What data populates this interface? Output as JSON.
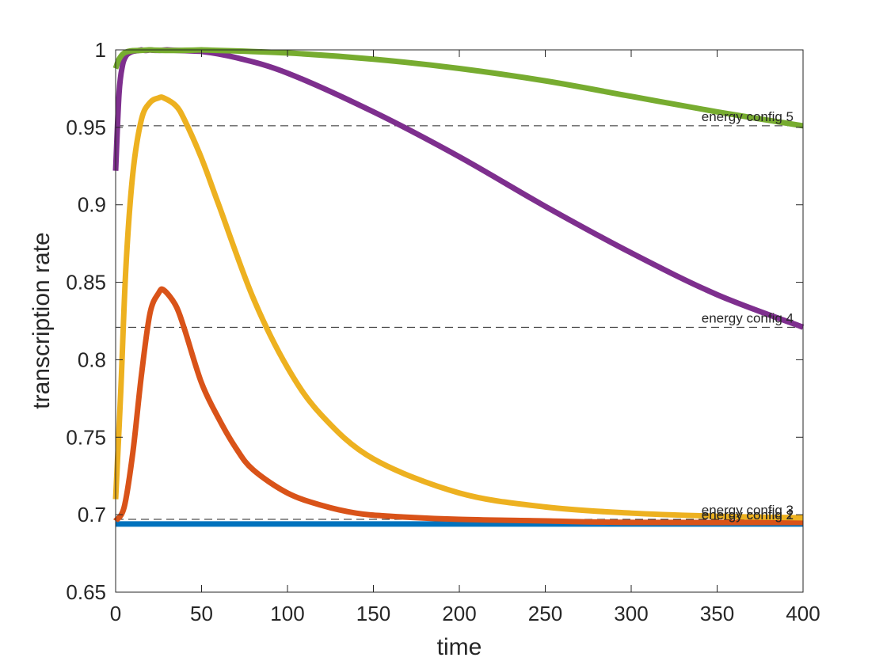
{
  "chart_data": {
    "type": "line",
    "xlabel": "time",
    "ylabel": "transcription rate",
    "xlim": [
      0,
      400
    ],
    "ylim": [
      0.65,
      1
    ],
    "xticks": [
      0,
      50,
      100,
      150,
      200,
      250,
      300,
      350,
      400
    ],
    "yticks": [
      0.65,
      0.7,
      0.75,
      0.8,
      0.85,
      0.9,
      0.95,
      1
    ],
    "ytick_labels": [
      "0.65",
      "0.7",
      "0.75",
      "0.8",
      "0.85",
      "0.9",
      "0.95",
      "1"
    ],
    "grid": false,
    "series": [
      {
        "color": "#0072BD",
        "x": [
          0,
          100,
          200,
          300,
          400
        ],
        "values": [
          0.694,
          0.694,
          0.694,
          0.694,
          0.694
        ]
      },
      {
        "color": "#D95319",
        "x": [
          0,
          5,
          10,
          15,
          20,
          25,
          28,
          35,
          40,
          50,
          60,
          70,
          80,
          100,
          120,
          140,
          160,
          200,
          250,
          300,
          400
        ],
        "values": [
          0.696,
          0.705,
          0.74,
          0.79,
          0.83,
          0.843,
          0.845,
          0.835,
          0.82,
          0.785,
          0.762,
          0.743,
          0.729,
          0.714,
          0.706,
          0.701,
          0.699,
          0.697,
          0.696,
          0.695,
          0.695
        ]
      },
      {
        "color": "#EDB120",
        "x": [
          0,
          3,
          6,
          10,
          15,
          20,
          25,
          28,
          35,
          40,
          50,
          60,
          80,
          100,
          120,
          150,
          200,
          250,
          300,
          350,
          400
        ],
        "values": [
          0.71,
          0.78,
          0.86,
          0.92,
          0.955,
          0.966,
          0.969,
          0.969,
          0.964,
          0.955,
          0.93,
          0.9,
          0.84,
          0.795,
          0.764,
          0.736,
          0.714,
          0.705,
          0.701,
          0.699,
          0.698
        ]
      },
      {
        "color": "#7E2F8E",
        "x": [
          0,
          2,
          4,
          6,
          8,
          10,
          15,
          20,
          30,
          50,
          70,
          100,
          150,
          200,
          250,
          300,
          350,
          400
        ],
        "values": [
          0.922,
          0.972,
          0.99,
          0.996,
          0.998,
          0.999,
          1.0,
          1.0,
          1.0,
          0.999,
          0.995,
          0.985,
          0.96,
          0.931,
          0.899,
          0.869,
          0.842,
          0.821
        ]
      },
      {
        "color": "#77AC30",
        "x": [
          0,
          2,
          5,
          10,
          20,
          50,
          100,
          150,
          200,
          250,
          300,
          350,
          400
        ],
        "values": [
          0.988,
          0.994,
          0.998,
          0.9995,
          1.0,
          1.0,
          0.998,
          0.994,
          0.988,
          0.98,
          0.97,
          0.96,
          0.951
        ]
      }
    ],
    "reference_lines": [
      {
        "label": "energy config 1",
        "y": 0.694
      },
      {
        "label": "energy config 2",
        "y": 0.694
      },
      {
        "label": "energy config 3",
        "y": 0.697
      },
      {
        "label": "energy config 4",
        "y": 0.821
      },
      {
        "label": "energy config 5",
        "y": 0.951
      }
    ]
  }
}
